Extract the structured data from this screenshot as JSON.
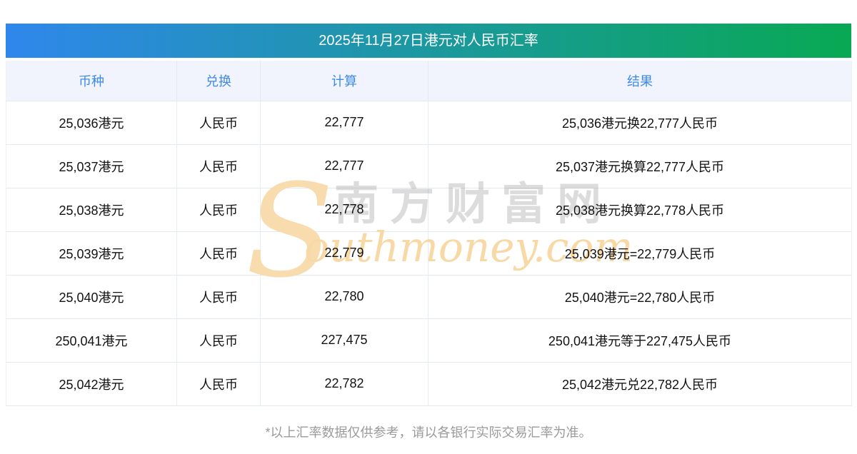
{
  "page": {
    "title": "2025年11月27日港元对人民币汇率",
    "footnote": "*以上汇率数据仅供参考，请以各银行实际交易汇率为准。"
  },
  "table": {
    "headers": [
      "币种",
      "兑换",
      "计算",
      "结果"
    ],
    "rows": [
      [
        "25,036港元",
        "人民币",
        "22,777",
        "25,036港元换22,777人民币"
      ],
      [
        "25,037港元",
        "人民币",
        "22,777",
        "25,037港元换算22,777人民币"
      ],
      [
        "25,038港元",
        "人民币",
        "22,778",
        "25,038港元换算22,778人民币"
      ],
      [
        "25,039港元",
        "人民币",
        "22,779",
        "25,039港元=22,779人民币"
      ],
      [
        "25,040港元",
        "人民币",
        "22,780",
        "25,040港元=22,780人民币"
      ],
      [
        "250,041港元",
        "人民币",
        "227,475",
        "250,041港元等于227,475人民币"
      ],
      [
        "25,042港元",
        "人民币",
        "22,782",
        "25,042港元兑22,782人民币"
      ]
    ]
  },
  "watermark": {
    "initial": "S",
    "site_name_cn": "南方财富网",
    "site_name_en": "outhmoney.com"
  },
  "colors": {
    "gradient_start": "#2f87ec",
    "gradient_end": "#08a953",
    "header_text": "#3f8ae9",
    "header_bg": "#f1f4fc",
    "row_border": "#e3e9f2",
    "cell_text": "#121212",
    "footnote_text": "#9a9a9a",
    "watermark_orange": "#f8d9a6",
    "watermark_gray": "#cccccc",
    "title_text": "#ffffff"
  }
}
